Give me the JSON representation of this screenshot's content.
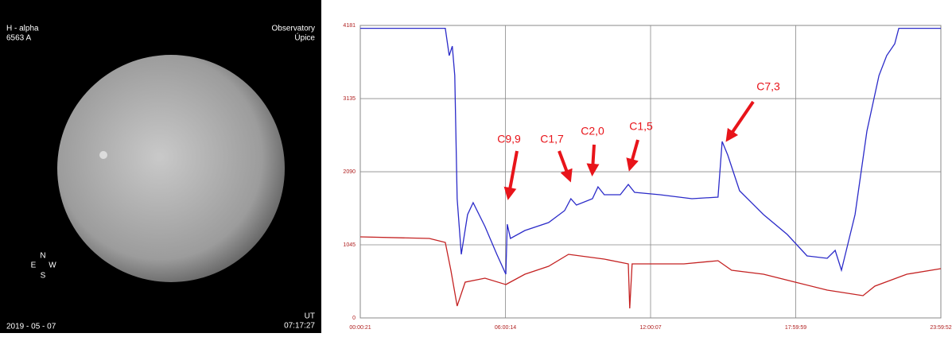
{
  "image": {
    "top_left": [
      "H - alpha",
      "6563 A"
    ],
    "top_right": [
      "Observatory",
      "Úpice"
    ],
    "compass": {
      "n": "N",
      "e": "E",
      "w": "W",
      "s": "S"
    },
    "date": "2019 - 05 - 07",
    "time_label": "UT",
    "time": "07:17:27"
  },
  "chart_data": {
    "type": "line",
    "xlim": [
      0.0058,
      23.9978
    ],
    "xticks": [
      {
        "value": 0.0058,
        "label": "00:00:21"
      },
      {
        "value": 6.0039,
        "label": "06:00:14"
      },
      {
        "value": 12.0019,
        "label": "12:00:07"
      },
      {
        "value": 17.9997,
        "label": "17:59:59"
      },
      {
        "value": 23.9978,
        "label": "23:59:52"
      }
    ],
    "ylim": [
      0,
      4181
    ],
    "yticks": [
      0,
      1045,
      2090,
      3135,
      4181
    ],
    "grid": true,
    "annotations": [
      "C9,9",
      "C1,7",
      "C2,0",
      "C1,5",
      "C7,3"
    ],
    "series": [
      {
        "color": "#2b2bc9",
        "x": [
          0.0058,
          3.52,
          3.68,
          3.81,
          3.91,
          4.01,
          4.18,
          4.44,
          4.67,
          5.16,
          5.65,
          6.02,
          6.08,
          6.21,
          6.81,
          7.79,
          8.45,
          8.71,
          8.94,
          9.6,
          9.83,
          10.09,
          10.75,
          11.08,
          11.34,
          12.39,
          13.71,
          14.79,
          14.96,
          15.19,
          15.68,
          16.67,
          17.65,
          18.47,
          19.3,
          19.63,
          19.89,
          20.45,
          20.94,
          21.44,
          21.76,
          22.09,
          22.26,
          23.9978
        ],
        "values": [
          4140,
          4140,
          3750,
          3885,
          3465,
          1704,
          909,
          1477,
          1647,
          1306,
          909,
          625,
          1340,
          1136,
          1250,
          1363,
          1534,
          1704,
          1613,
          1704,
          1874,
          1761,
          1761,
          1908,
          1795,
          1761,
          1704,
          1727,
          2522,
          2329,
          1818,
          1477,
          1193,
          886,
          852,
          966,
          682,
          1477,
          2670,
          3465,
          3750,
          3919,
          4140,
          4140
        ]
      },
      {
        "color": "#c42222",
        "x": [
          0.0058,
          2.86,
          3.52,
          3.75,
          4.01,
          4.34,
          5.16,
          6.02,
          6.81,
          7.79,
          8.61,
          10.09,
          11.08,
          11.14,
          11.24,
          13.38,
          14.79,
          15.35,
          16.67,
          17.98,
          19.3,
          20.78,
          21.27,
          22.59,
          23.9978
        ],
        "values": [
          1159,
          1136,
          1079,
          682,
          170,
          511,
          568,
          477,
          625,
          738,
          909,
          841,
          773,
          136,
          773,
          773,
          818,
          682,
          625,
          511,
          398,
          318,
          454,
          625,
          704
        ]
      }
    ]
  }
}
